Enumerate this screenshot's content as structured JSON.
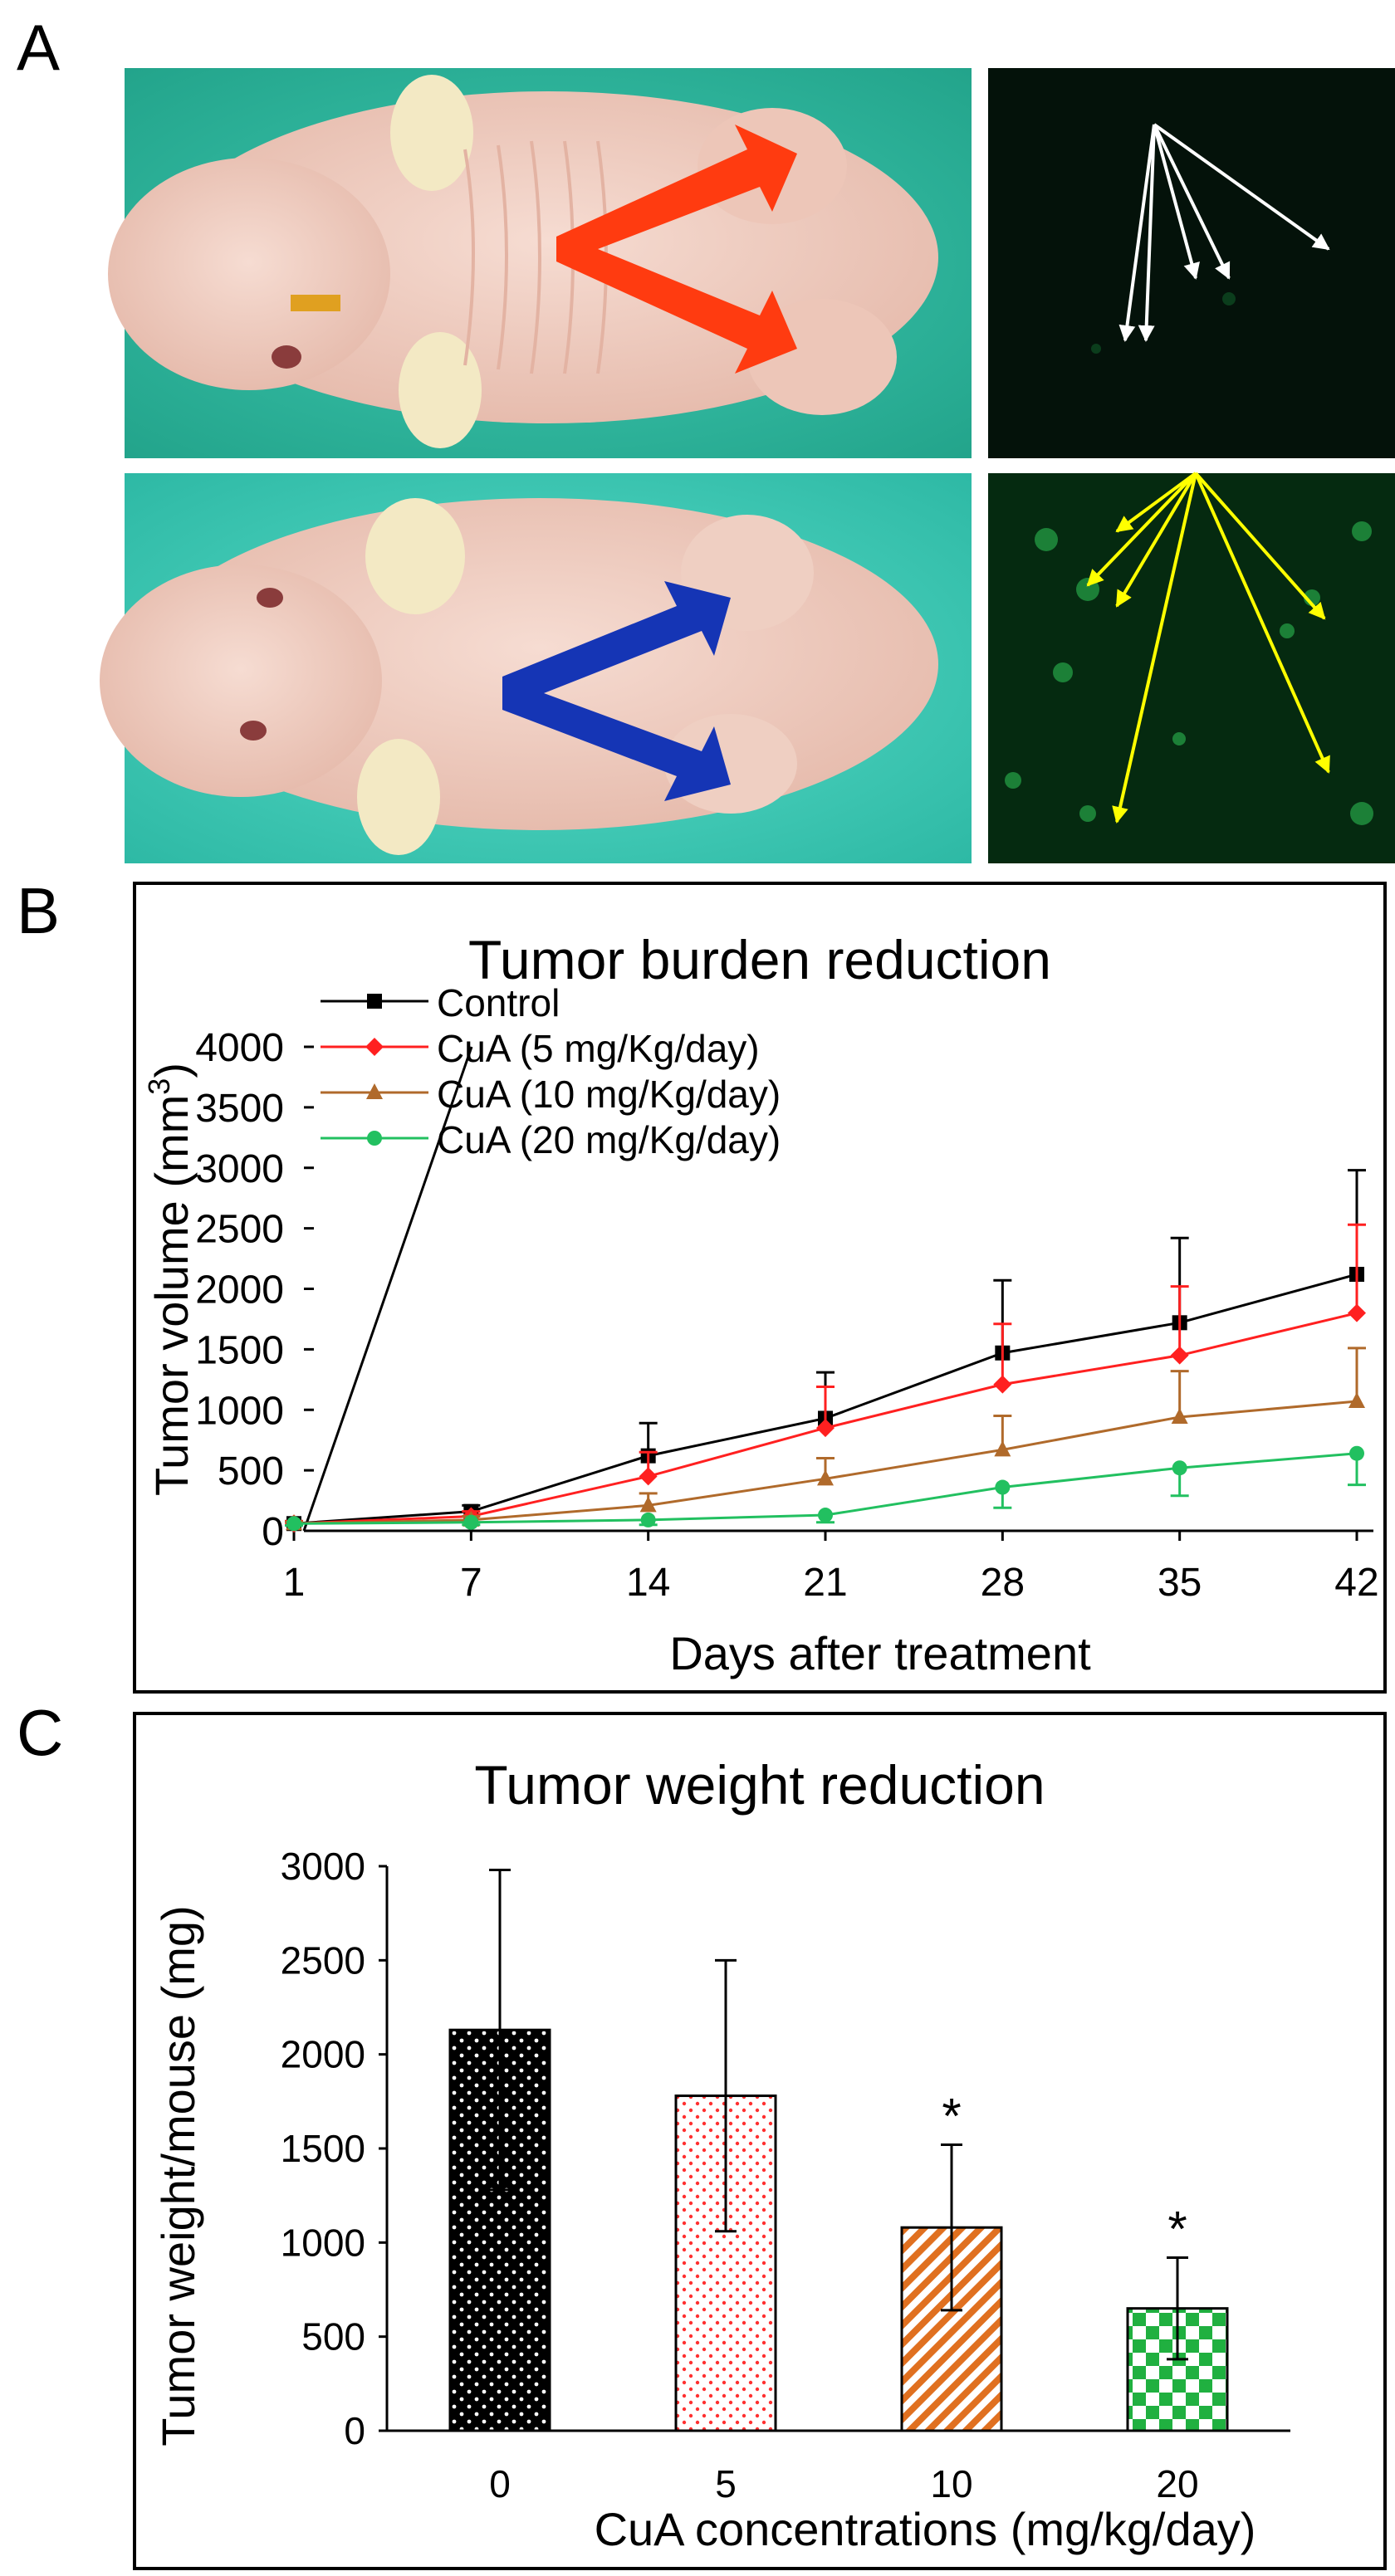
{
  "panels": {
    "a": "A",
    "b": "B",
    "c": "C"
  },
  "chart_data": [
    {
      "type": "line",
      "title": "Tumor burden reduction",
      "xlabel": "Days after treatment",
      "ylabel": "Tumor volume (mm³)",
      "ylabel_main": "Tumor volume (mm",
      "ylabel_sup": "3",
      "ylabel_end": ")",
      "x": [
        1,
        7,
        14,
        21,
        28,
        35,
        42
      ],
      "x_ticks": [
        "1",
        "7",
        "14",
        "21",
        "28",
        "35",
        "42"
      ],
      "ylim": [
        0,
        4000
      ],
      "y_ticks": [
        "0",
        "500",
        "1000",
        "1500",
        "2000",
        "2500",
        "3000",
        "3500",
        "4000"
      ],
      "legend_position": "top-left",
      "series": [
        {
          "name": "Control",
          "color": "#000000",
          "marker": "square",
          "values": [
            60,
            160,
            620,
            930,
            1470,
            1720,
            2120
          ],
          "errors": [
            20,
            50,
            270,
            380,
            600,
            700,
            860
          ]
        },
        {
          "name": "CuA (5 mg/Kg/day)",
          "color": "#ff2020",
          "marker": "diamond",
          "values": [
            60,
            120,
            450,
            850,
            1210,
            1450,
            1800
          ],
          "errors": [
            20,
            40,
            200,
            340,
            500,
            570,
            730
          ]
        },
        {
          "name": "CuA (10 mg/Kg/day)",
          "color": "#b06a2b",
          "marker": "triangle",
          "values": [
            60,
            90,
            210,
            430,
            670,
            940,
            1070
          ],
          "errors": [
            15,
            30,
            100,
            170,
            280,
            380,
            440
          ]
        },
        {
          "name": "CuA (20 mg/Kg/day)",
          "color": "#22c060",
          "marker": "circle",
          "values": [
            60,
            70,
            90,
            130,
            360,
            520,
            640
          ],
          "errors": [
            15,
            20,
            40,
            60,
            170,
            230,
            260
          ]
        }
      ]
    },
    {
      "type": "bar",
      "title": "Tumor weight reduction",
      "xlabel": "CuA concentrations (mg/kg/day)",
      "ylabel": "Tumor weight/mouse (mg)",
      "categories": [
        "0",
        "5",
        "10",
        "20"
      ],
      "values": [
        2130,
        1780,
        1080,
        650
      ],
      "errors": [
        850,
        720,
        440,
        270
      ],
      "significance": [
        "",
        "",
        "*",
        "*"
      ],
      "ylim": [
        0,
        3000
      ],
      "y_ticks": [
        "0",
        "500",
        "1000",
        "1500",
        "2000",
        "2500",
        "3000"
      ],
      "colors": [
        "#000000",
        "#ff3030",
        "#e07020",
        "#20b040"
      ]
    }
  ]
}
